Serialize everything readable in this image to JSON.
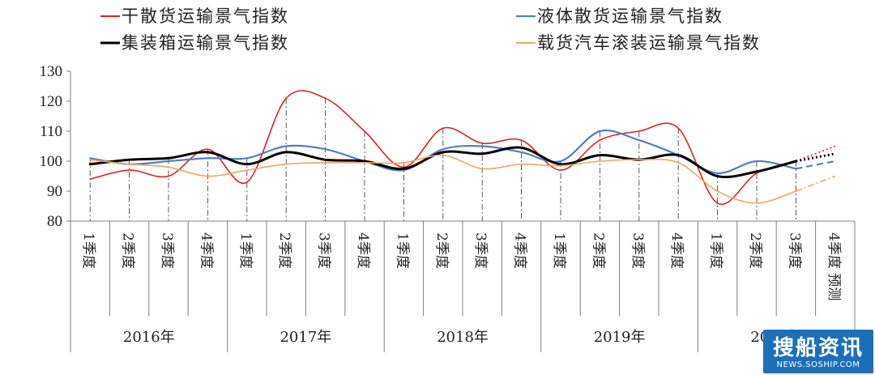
{
  "chart_data": {
    "type": "line",
    "title": "",
    "ylim": [
      80,
      130
    ],
    "yticks": [
      80,
      90,
      100,
      110,
      120,
      130
    ],
    "grid": false,
    "legend_placement": "top",
    "categories": [
      "1季度",
      "2季度",
      "3季度",
      "4季度",
      "1季度",
      "2季度",
      "3季度",
      "4季度",
      "1季度",
      "2季度",
      "3季度",
      "4季度",
      "1季度",
      "2季度",
      "3季度",
      "4季度",
      "1季度",
      "2季度",
      "3季度",
      "4季度 预测"
    ],
    "years": [
      {
        "label": "2016年",
        "quarters": 4
      },
      {
        "label": "2017年",
        "quarters": 4
      },
      {
        "label": "2018年",
        "quarters": 4
      },
      {
        "label": "2019年",
        "quarters": 4
      },
      {
        "label": "2020年",
        "quarters": 4
      }
    ],
    "forecast_from_index": 18,
    "series": [
      {
        "name": "干散货运输景气指数",
        "color": "#e82020",
        "width": 1.6,
        "values": [
          94,
          97,
          95,
          104,
          93,
          121,
          121,
          110,
          98,
          111,
          106,
          107,
          97,
          107,
          110,
          111,
          86,
          96,
          100,
          105
        ]
      },
      {
        "name": "液体散货运输景气指数",
        "color": "#4f81bd",
        "width": 2.2,
        "values": [
          101,
          99,
          100,
          101,
          101,
          105,
          104,
          100,
          97,
          104,
          105,
          103,
          100,
          110,
          107,
          102,
          96,
          100,
          97.5,
          100
        ]
      },
      {
        "name": "集装箱运输景气指数",
        "color": "#000000",
        "width": 3,
        "values": [
          99,
          100.5,
          101,
          103,
          99,
          103,
          100.5,
          100,
          97.5,
          103,
          102.5,
          104.5,
          99,
          102,
          100.5,
          102,
          95,
          96.5,
          100,
          102.5
        ]
      },
      {
        "name": "载货汽车滚装运输景气指数",
        "color": "#f4a460",
        "width": 1.6,
        "values": [
          100.5,
          99,
          98,
          95,
          97,
          99,
          99.5,
          99.5,
          99.5,
          102,
          97.5,
          99,
          98.5,
          100,
          100.5,
          99.5,
          90,
          86,
          90,
          95
        ]
      }
    ]
  },
  "watermark": {
    "main": "搜船资讯",
    "sub": "NEWS.SOSHIP.COM"
  }
}
